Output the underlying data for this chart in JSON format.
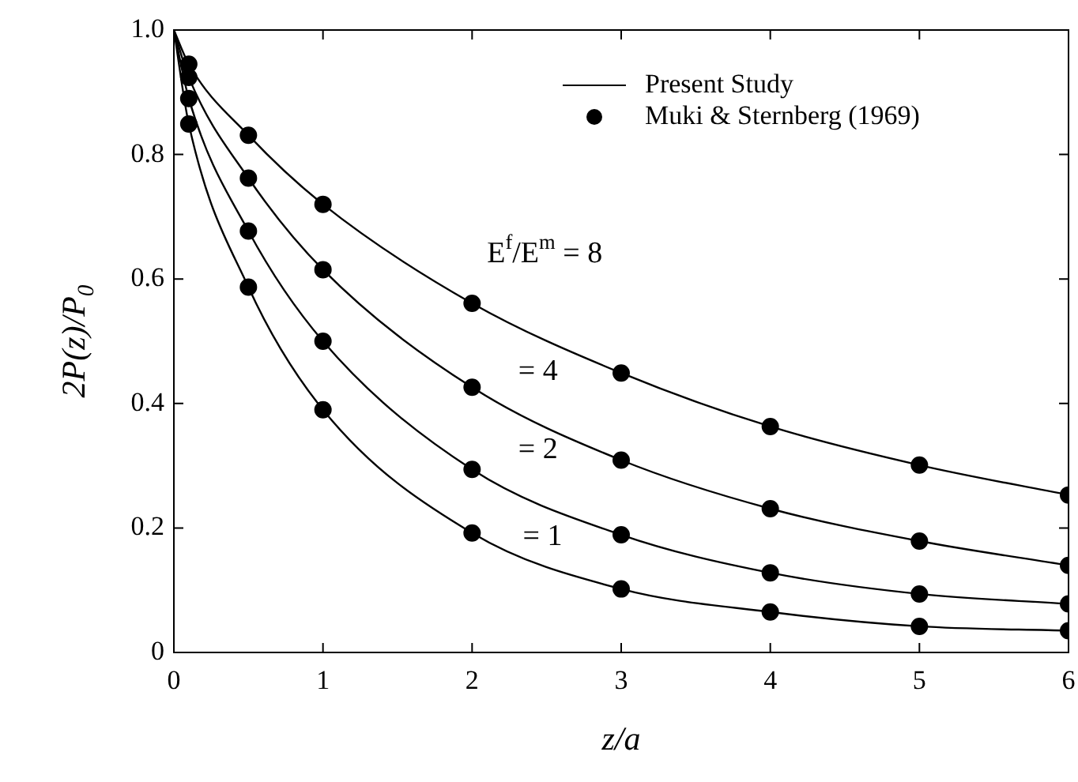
{
  "chart_data": {
    "type": "line",
    "xlabel": "z/a",
    "ylabel": "2P(z)/P$_{0}$",
    "xlim": [
      0,
      6
    ],
    "ylim": [
      0,
      1
    ],
    "xticks": [
      0,
      1,
      2,
      3,
      4,
      5,
      6
    ],
    "yticks": [
      {
        "value": 0,
        "label": "0"
      },
      {
        "value": 0.2,
        "label": "0.2"
      },
      {
        "value": 0.4,
        "label": "0.4"
      },
      {
        "value": 0.6,
        "label": "0.6"
      },
      {
        "value": 0.8,
        "label": "0.8"
      },
      {
        "value": 1,
        "label": "1.0"
      }
    ],
    "grid": false,
    "legend": "top right",
    "series": [
      {
        "name": "Present Study",
        "color": "#000000",
        "marker": "none",
        "x": [
          0,
          0.1,
          0.5,
          1,
          2,
          3,
          4,
          5,
          6
        ],
        "values": [
          1,
          0.945,
          0.831,
          0.72,
          0.561,
          0.449,
          0.363,
          0.301,
          0.253
        ]
      },
      {
        "color": "#000000",
        "marker": "none",
        "x": [
          0,
          0.1,
          0.5,
          1,
          2,
          3,
          4,
          5,
          6
        ],
        "values": [
          1,
          0.924,
          0.762,
          0.615,
          0.426,
          0.309,
          0.231,
          0.179,
          0.14
        ]
      },
      {
        "color": "#000000",
        "marker": "none",
        "x": [
          0,
          0.1,
          0.5,
          1,
          2,
          3,
          4,
          5,
          6
        ],
        "values": [
          1,
          0.89,
          0.677,
          0.5,
          0.294,
          0.189,
          0.128,
          0.094,
          0.078
        ]
      },
      {
        "color": "#000000",
        "marker": "none",
        "x": [
          0,
          0.1,
          0.5,
          1,
          2,
          3,
          4,
          5,
          6
        ],
        "values": [
          1,
          0.849,
          0.587,
          0.39,
          0.192,
          0.102,
          0.065,
          0.042,
          0.035
        ]
      },
      {
        "name": "Muki & Sternberg (1969)",
        "type": "scatter",
        "color": "#000000",
        "marker": "circle",
        "x": [
          0.1,
          0.5,
          1,
          2,
          3,
          4,
          5,
          6
        ],
        "values": [
          0.945,
          0.831,
          0.72,
          0.561,
          0.449,
          0.363,
          0.301,
          0.253
        ]
      },
      {
        "type": "scatter",
        "color": "#000000",
        "marker": "circle",
        "x": [
          0.1,
          0.5,
          1,
          2,
          3,
          4,
          5,
          6
        ],
        "values": [
          0.924,
          0.762,
          0.615,
          0.426,
          0.309,
          0.231,
          0.179,
          0.14
        ]
      },
      {
        "type": "scatter",
        "color": "#000000",
        "marker": "circle",
        "x": [
          0.1,
          0.5,
          1,
          2,
          3,
          4,
          5,
          6
        ],
        "values": [
          0.89,
          0.677,
          0.5,
          0.294,
          0.189,
          0.128,
          0.094,
          0.078
        ]
      },
      {
        "type": "scatter",
        "color": "#000000",
        "marker": "circle",
        "x": [
          0.1,
          0.5,
          1,
          2,
          3,
          4,
          5,
          6
        ],
        "values": [
          0.849,
          0.587,
          0.39,
          0.192,
          0.102,
          0.065,
          0.042,
          0.035
        ]
      }
    ],
    "annotations": [
      "E$^{f}$/E$^{m}$ = 8",
      "= 4",
      "= 2",
      "= 1"
    ]
  }
}
